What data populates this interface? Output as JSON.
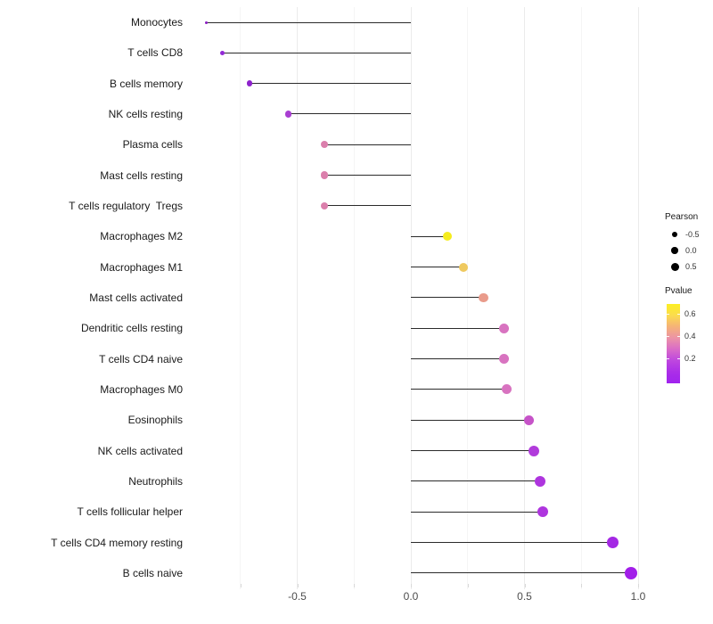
{
  "chart_data": {
    "type": "scatter",
    "subtype": "lollipop",
    "title": "",
    "xlabel": "",
    "ylabel": "",
    "grid": "on",
    "x_axis": {
      "tick_values": [
        -0.5,
        0.0,
        0.5,
        1.0
      ],
      "tick_labels": [
        "-0.5",
        "0.0",
        "0.5",
        "1.0"
      ],
      "minor_tick_values": [
        -0.75,
        -0.25,
        0.25,
        0.75
      ],
      "range_shown": [
        -0.97,
        1.07
      ]
    },
    "baseline_x": 0.0,
    "points": [
      {
        "label": "Monocytes",
        "pearson": -0.9,
        "dot_color": "#8a1cc2",
        "dot_diameter": 3
      },
      {
        "label": "T cells CD8",
        "pearson": -0.83,
        "dot_color": "#9228d6",
        "dot_diameter": 5
      },
      {
        "label": "B cells memory",
        "pearson": -0.71,
        "dot_color": "#8e22cc",
        "dot_diameter": 6.5
      },
      {
        "label": "NK cells resting",
        "pearson": -0.54,
        "dot_color": "#a93ed2",
        "dot_diameter": 7.5
      },
      {
        "label": "Plasma cells",
        "pearson": -0.38,
        "dot_color": "#db7fac",
        "dot_diameter": 8
      },
      {
        "label": "Mast cells resting",
        "pearson": -0.38,
        "dot_color": "#db7fac",
        "dot_diameter": 8.5
      },
      {
        "label": "T cells regulatory  Tregs",
        "pearson": -0.38,
        "dot_color": "#db7fac",
        "dot_diameter": 8.5
      },
      {
        "label": "Macrophages M2",
        "pearson": 0.16,
        "dot_color": "#f5ec1e",
        "dot_diameter": 10
      },
      {
        "label": "Macrophages M1",
        "pearson": 0.23,
        "dot_color": "#efc95f",
        "dot_diameter": 10
      },
      {
        "label": "Mast cells activated",
        "pearson": 0.32,
        "dot_color": "#e99b8b",
        "dot_diameter": 10.5
      },
      {
        "label": "Dendritic cells resting",
        "pearson": 0.41,
        "dot_color": "#d873c0",
        "dot_diameter": 11
      },
      {
        "label": "T cells CD4 naive",
        "pearson": 0.41,
        "dot_color": "#d873c0",
        "dot_diameter": 11
      },
      {
        "label": "Macrophages M0",
        "pearson": 0.42,
        "dot_color": "#d873c0",
        "dot_diameter": 11
      },
      {
        "label": "Eosinophils",
        "pearson": 0.52,
        "dot_color": "#c653c8",
        "dot_diameter": 11.5
      },
      {
        "label": "NK cells activated",
        "pearson": 0.54,
        "dot_color": "#b13bdb",
        "dot_diameter": 12
      },
      {
        "label": "Neutrophils",
        "pearson": 0.57,
        "dot_color": "#ae35de",
        "dot_diameter": 12
      },
      {
        "label": "T cells follicular helper",
        "pearson": 0.58,
        "dot_color": "#ae35de",
        "dot_diameter": 12
      },
      {
        "label": "T cells CD4 memory resting",
        "pearson": 0.89,
        "dot_color": "#a428e4",
        "dot_diameter": 13
      },
      {
        "label": "B cells naive",
        "pearson": 0.97,
        "dot_color": "#a21ee9",
        "dot_diameter": 14
      }
    ],
    "legend": {
      "pearson": {
        "title": "Pearson",
        "entries": [
          {
            "label": "-0.5",
            "dot_diameter": 6
          },
          {
            "label": "0.0",
            "dot_diameter": 7.5
          },
          {
            "label": "0.5",
            "dot_diameter": 9
          }
        ]
      },
      "pvalue": {
        "title": "Pvalue",
        "tick_labels": [
          "0.6",
          "0.4",
          "0.2"
        ],
        "gradient_top_to_bottom": [
          "#fcef23",
          "#fbdc4e",
          "#f5b278",
          "#ec93a6",
          "#d96bc8",
          "#be47df",
          "#ab2ee8",
          "#a023ee"
        ]
      }
    },
    "layout_hints": {
      "stem_color": "#2b2b2b",
      "legend_position": "right",
      "background": "#ffffff"
    }
  }
}
